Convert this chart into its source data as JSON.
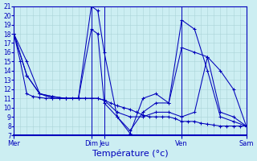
{
  "xlabel": "Température (°c)",
  "ylim": [
    7,
    21
  ],
  "yticks": [
    7,
    8,
    9,
    10,
    11,
    12,
    13,
    14,
    15,
    16,
    17,
    18,
    19,
    20,
    21
  ],
  "bg_color": "#cceef2",
  "grid_color": "#aad4d8",
  "line_color": "#0000bb",
  "xlabel_fontsize": 8,
  "day_labels": [
    "Mer",
    "Dim",
    "Jeu",
    "Ven",
    "Sam"
  ],
  "day_x": [
    0,
    72,
    84,
    156,
    216
  ],
  "xlim": [
    0,
    216
  ],
  "vline_positions": [
    0,
    72,
    84,
    156,
    216
  ],
  "n_cols": 36,
  "lines": [
    {
      "x": [
        0,
        6,
        12,
        18,
        24,
        30,
        36,
        42,
        48,
        54,
        60,
        66,
        72,
        78,
        84,
        90,
        96,
        102,
        108,
        114,
        120,
        126,
        132,
        138,
        144,
        150,
        156,
        162,
        168,
        174,
        180,
        186,
        192,
        198,
        204,
        210,
        216
      ],
      "y": [
        18,
        15,
        11.5,
        11.2,
        11.1,
        11.0,
        11.0,
        11.0,
        11.0,
        11.0,
        11.0,
        11.0,
        11.0,
        11.0,
        10.8,
        10.5,
        10.2,
        10.0,
        9.8,
        9.5,
        9.2,
        9.0,
        9.0,
        9.0,
        9.0,
        8.8,
        8.5,
        8.5,
        8.5,
        8.3,
        8.2,
        8.1,
        8.0,
        8.0,
        8.0,
        8.0,
        8.0
      ]
    },
    {
      "x": [
        0,
        12,
        24,
        36,
        48,
        60,
        72,
        78,
        84,
        96,
        108,
        120,
        132,
        144,
        156,
        168,
        180,
        192,
        204,
        216
      ],
      "y": [
        18,
        13.5,
        11.5,
        11.2,
        11.0,
        11.0,
        21.0,
        20.5,
        16.0,
        9.0,
        7.2,
        11.0,
        11.5,
        10.5,
        19.5,
        18.5,
        14.0,
        9.0,
        8.5,
        8.0
      ]
    },
    {
      "x": [
        0,
        12,
        24,
        36,
        48,
        60,
        72,
        78,
        84,
        96,
        108,
        120,
        132,
        144,
        156,
        168,
        180,
        192,
        204,
        216
      ],
      "y": [
        18,
        13.5,
        11.5,
        11.2,
        11.0,
        11.0,
        18.5,
        18.0,
        10.5,
        9.0,
        7.5,
        9.5,
        10.5,
        10.5,
        16.5,
        16.0,
        15.5,
        14.0,
        12.0,
        8.0
      ]
    },
    {
      "x": [
        0,
        12,
        24,
        36,
        48,
        60,
        72,
        78,
        84,
        96,
        108,
        120,
        132,
        144,
        156,
        168,
        180,
        192,
        204,
        216
      ],
      "y": [
        18,
        15.0,
        11.5,
        11.0,
        11.0,
        11.0,
        11.0,
        11.0,
        10.8,
        9.5,
        9.0,
        9.0,
        9.5,
        9.5,
        9.0,
        9.5,
        15.5,
        9.5,
        9.0,
        8.0
      ]
    }
  ]
}
